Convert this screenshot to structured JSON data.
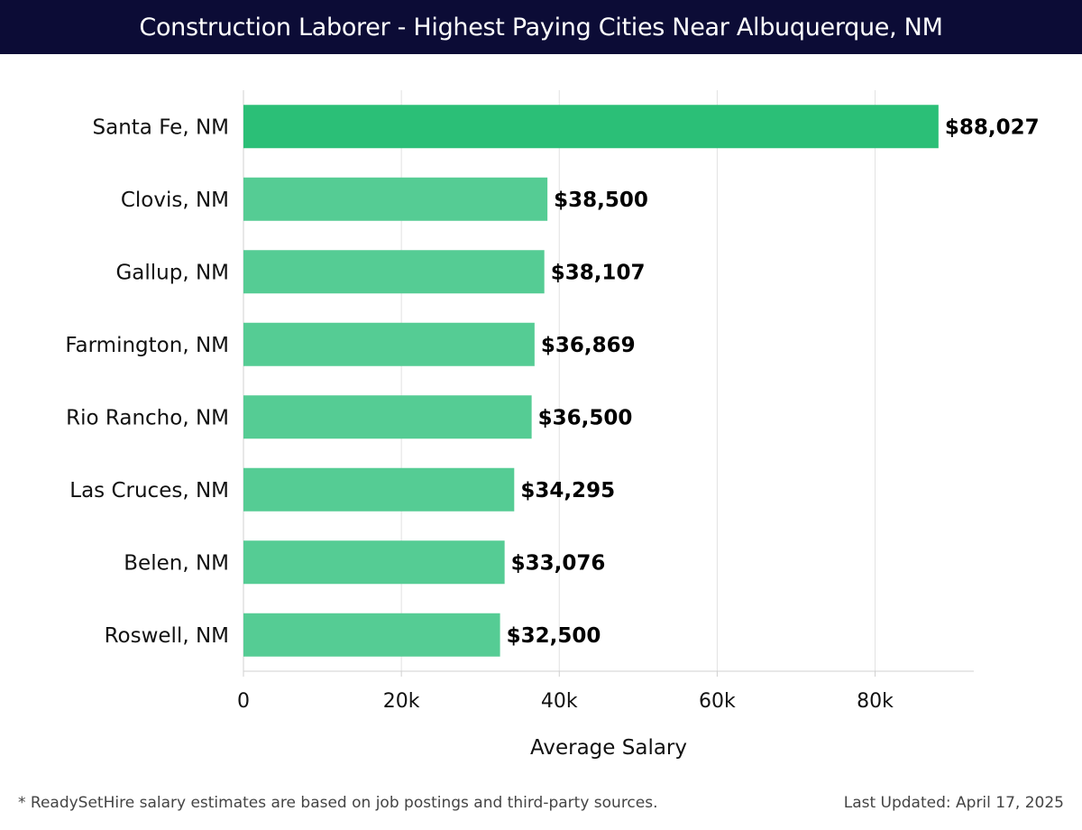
{
  "header": {
    "title": "Construction Laborer - Highest Paying Cities Near Albuquerque, NM"
  },
  "chart_data": {
    "type": "bar",
    "orientation": "horizontal",
    "title": "Construction Laborer - Highest Paying Cities Near Albuquerque, NM",
    "xlabel": "Average Salary",
    "ylabel": "",
    "xlim": [
      0,
      92500
    ],
    "x_ticks": [
      0,
      20000,
      40000,
      60000,
      80000
    ],
    "x_tick_labels": [
      "0",
      "20k",
      "40k",
      "60k",
      "80k"
    ],
    "grid": true,
    "categories": [
      "Santa Fe, NM",
      "Clovis, NM",
      "Gallup, NM",
      "Farmington, NM",
      "Rio Rancho, NM",
      "Las Cruces, NM",
      "Belen, NM",
      "Roswell, NM"
    ],
    "values": [
      88027,
      38500,
      38107,
      36869,
      36500,
      34295,
      33076,
      32500
    ],
    "value_labels": [
      "$88,027",
      "$38,500",
      "$38,107",
      "$36,869",
      "$36,500",
      "$34,295",
      "$33,076",
      "$32,500"
    ],
    "colors": {
      "highlight_bar": "#2bbf77",
      "bar": "#55cc94",
      "grid": "#e2e2e2",
      "header_bg": "#0c0c36"
    }
  },
  "footer": {
    "note": "* ReadySetHire salary estimates are based on job postings and third-party sources.",
    "updated": "Last Updated: April 17, 2025"
  }
}
